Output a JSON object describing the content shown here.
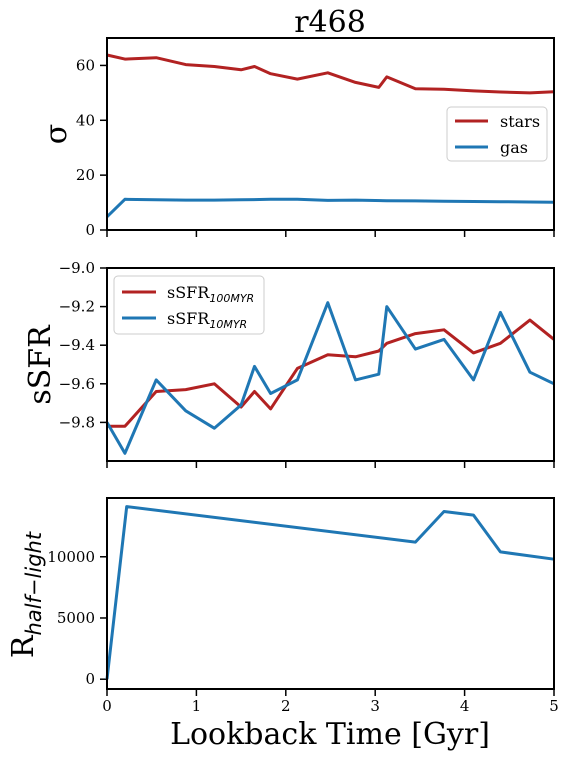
{
  "chart_data": [
    {
      "type": "line",
      "title": "r468",
      "ylabel": "σ",
      "xlim": [
        0,
        5
      ],
      "ylim": [
        0,
        70
      ],
      "yticks": [
        0,
        20,
        40,
        60
      ],
      "xticks": [
        0,
        1,
        2,
        3,
        4,
        5
      ],
      "legend": "center-right",
      "grid": false,
      "series": [
        {
          "name": "stars",
          "color": "#b22222",
          "x": [
            0,
            0.2,
            0.55,
            0.88,
            1.2,
            1.5,
            1.65,
            1.83,
            2.13,
            2.47,
            2.78,
            3.04,
            3.13,
            3.45,
            3.77,
            4.1,
            4.4,
            4.73,
            5.0
          ],
          "y": [
            63.8,
            62.3,
            62.8,
            60.3,
            59.6,
            58.4,
            59.6,
            57.0,
            55.0,
            57.3,
            53.8,
            52.0,
            55.8,
            51.5,
            51.3,
            50.7,
            50.3,
            50.0,
            50.4
          ]
        },
        {
          "name": "gas",
          "color": "#1f77b4",
          "x": [
            0,
            0.2,
            0.55,
            0.88,
            1.2,
            1.5,
            1.83,
            2.13,
            2.47,
            2.78,
            3.13,
            3.45,
            3.77,
            4.1,
            4.4,
            4.73,
            5.0
          ],
          "y": [
            4.8,
            11.2,
            11.0,
            10.9,
            10.9,
            11.0,
            11.2,
            11.2,
            10.8,
            10.9,
            10.7,
            10.6,
            10.5,
            10.4,
            10.3,
            10.2,
            10.1
          ]
        }
      ]
    },
    {
      "type": "line",
      "ylabel": "sSFR",
      "xlim": [
        0,
        5
      ],
      "ylim": [
        -10.0,
        -9.0
      ],
      "yticks": [
        -9.0,
        -9.2,
        -9.4,
        -9.6,
        -9.8
      ],
      "xticks": [
        0,
        1,
        2,
        3,
        4,
        5
      ],
      "legend": "upper-left",
      "grid": false,
      "series": [
        {
          "name": "sSFR",
          "subscript": "100MYR",
          "color": "#b22222",
          "x": [
            0,
            0.2,
            0.55,
            0.88,
            1.2,
            1.5,
            1.65,
            1.83,
            2.13,
            2.47,
            2.78,
            3.04,
            3.13,
            3.45,
            3.77,
            4.1,
            4.4,
            4.73,
            5.0
          ],
          "y": [
            -9.82,
            -9.82,
            -9.64,
            -9.63,
            -9.6,
            -9.72,
            -9.64,
            -9.73,
            -9.52,
            -9.45,
            -9.46,
            -9.43,
            -9.39,
            -9.34,
            -9.32,
            -9.44,
            -9.39,
            -9.27,
            -9.37
          ]
        },
        {
          "name": "sSFR",
          "subscript": "10MYR",
          "color": "#1f77b4",
          "x": [
            0,
            0.2,
            0.55,
            0.88,
            1.2,
            1.5,
            1.65,
            1.83,
            2.13,
            2.47,
            2.78,
            3.04,
            3.13,
            3.45,
            3.77,
            4.1,
            4.4,
            4.73,
            5.0
          ],
          "y": [
            -9.8,
            -9.96,
            -9.58,
            -9.74,
            -9.83,
            -9.71,
            -9.51,
            -9.65,
            -9.58,
            -9.18,
            -9.58,
            -9.55,
            -9.2,
            -9.42,
            -9.37,
            -9.58,
            -9.23,
            -9.54,
            -9.6
          ]
        }
      ]
    },
    {
      "type": "line",
      "ylabel": "R",
      "ylabel_subscript": "half−light",
      "xlabel": "Lookback Time [Gyr]",
      "xlim": [
        0,
        5
      ],
      "ylim": [
        -800,
        14800
      ],
      "yticks": [
        0,
        5000,
        10000
      ],
      "xticks": [
        0,
        1,
        2,
        3,
        4,
        5
      ],
      "grid": false,
      "series": [
        {
          "color": "#1f77b4",
          "x": [
            0,
            0.22,
            3.45,
            3.77,
            4.1,
            4.4,
            5.0
          ],
          "y": [
            0,
            14100,
            11200,
            13700,
            13400,
            10400,
            9800
          ]
        }
      ]
    }
  ]
}
